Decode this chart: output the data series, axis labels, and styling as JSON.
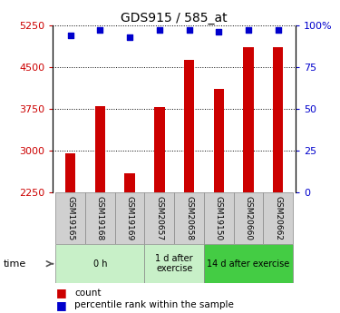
{
  "title": "GDS915 / 585_at",
  "samples": [
    "GSM19165",
    "GSM19168",
    "GSM19169",
    "GSM20657",
    "GSM20658",
    "GSM19150",
    "GSM20660",
    "GSM20662"
  ],
  "bar_values": [
    2950,
    3800,
    2600,
    3780,
    4620,
    4100,
    4850,
    4850
  ],
  "percentile_values": [
    94,
    97,
    93,
    97,
    97,
    96,
    97,
    97
  ],
  "ylim_left": [
    2250,
    5250
  ],
  "ylim_right": [
    0,
    100
  ],
  "yticks_left": [
    2250,
    3000,
    3750,
    4500,
    5250
  ],
  "yticks_right": [
    0,
    25,
    50,
    75,
    100
  ],
  "ytick_labels_left": [
    "2250",
    "3000",
    "3750",
    "4500",
    "5250"
  ],
  "ytick_labels_right": [
    "0",
    "25",
    "50",
    "75",
    "100%"
  ],
  "bar_color": "#cc0000",
  "dot_color": "#0000cc",
  "groups": [
    {
      "label": "0 h",
      "start": 0,
      "end": 3,
      "fc": "#c8f0c8"
    },
    {
      "label": "1 d after\nexercise",
      "start": 3,
      "end": 5,
      "fc": "#c8f0c8"
    },
    {
      "label": "14 d after exercise",
      "start": 5,
      "end": 8,
      "fc": "#44cc44"
    }
  ],
  "time_label": "time",
  "legend_count": "count",
  "legend_percentile": "percentile rank within the sample",
  "tick_color_left": "#cc0000",
  "tick_color_right": "#0000cc",
  "sample_box_color": "#d0d0d0",
  "bar_width": 0.35
}
